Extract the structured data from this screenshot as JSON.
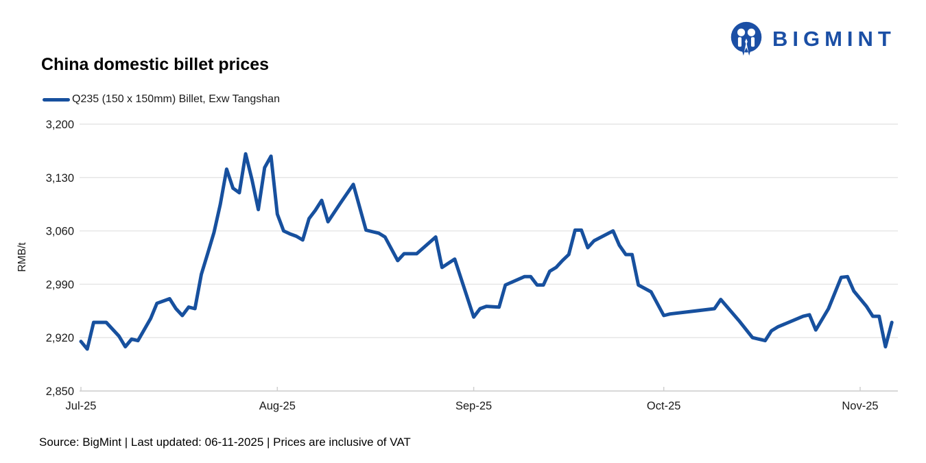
{
  "header": {
    "title": "China domestic billet prices"
  },
  "logo": {
    "text": "BIGMINT",
    "color": "#1b4fa5"
  },
  "legend": {
    "label": "Q235 (150 x 150mm) Billet, Exw Tangshan",
    "line_color": "#17509e"
  },
  "footer": {
    "text": "Source: BigMint | Last updated: 06-11-2025 | Prices are inclusive of VAT"
  },
  "chart_data": {
    "type": "line",
    "title": "China domestic billet prices",
    "series_name": "Q235 (150 x 150mm) Billet, Exw Tangshan",
    "ylabel": "RMB/t",
    "xlabel": "",
    "ylim": [
      2850,
      3200
    ],
    "y_tick_values": [
      3200,
      3130,
      3060,
      2990,
      2920,
      2850
    ],
    "y_tick_labels": [
      "3,200",
      "3,130",
      "3,060",
      "2,990",
      "2,920",
      "2,850"
    ],
    "x_tick_labels": [
      "Jul-25",
      "Aug-25",
      "Sep-25",
      "Oct-25",
      "Nov-25"
    ],
    "x_tick_days": [
      0,
      31,
      62,
      92,
      123
    ],
    "x_unit": "days_since_2025-07-01",
    "x_range_days": [
      0,
      129
    ],
    "grid": "horizontal",
    "legend_position": "top-left",
    "line_color": "#17509e",
    "points": [
      [
        0,
        2915
      ],
      [
        1,
        2905
      ],
      [
        2,
        2940
      ],
      [
        4,
        2940
      ],
      [
        6,
        2922
      ],
      [
        7,
        2908
      ],
      [
        8,
        2918
      ],
      [
        9,
        2916
      ],
      [
        11,
        2945
      ],
      [
        12,
        2965
      ],
      [
        13,
        2968
      ],
      [
        14,
        2971
      ],
      [
        15,
        2958
      ],
      [
        16,
        2949
      ],
      [
        17,
        2960
      ],
      [
        18,
        2958
      ],
      [
        19,
        3003
      ],
      [
        20,
        3030
      ],
      [
        21,
        3058
      ],
      [
        22,
        3095
      ],
      [
        23,
        3141
      ],
      [
        24,
        3116
      ],
      [
        25,
        3110
      ],
      [
        26,
        3161
      ],
      [
        27,
        3127
      ],
      [
        28,
        3088
      ],
      [
        29,
        3143
      ],
      [
        30,
        3158
      ],
      [
        31,
        3082
      ],
      [
        32,
        3060
      ],
      [
        33,
        3056
      ],
      [
        34,
        3053
      ],
      [
        35,
        3048
      ],
      [
        36,
        3076
      ],
      [
        37,
        3087
      ],
      [
        38,
        3100
      ],
      [
        39,
        3072
      ],
      [
        41,
        3097
      ],
      [
        43,
        3121
      ],
      [
        45,
        3061
      ],
      [
        47,
        3057
      ],
      [
        48,
        3052
      ],
      [
        50,
        3021
      ],
      [
        51,
        3030
      ],
      [
        53,
        3030
      ],
      [
        56,
        3052
      ],
      [
        57,
        3012
      ],
      [
        59,
        3023
      ],
      [
        62,
        2947
      ],
      [
        63,
        2958
      ],
      [
        64,
        2961
      ],
      [
        66,
        2960
      ],
      [
        67,
        2989
      ],
      [
        70,
        3000
      ],
      [
        71,
        3000
      ],
      [
        72,
        2989
      ],
      [
        73,
        2989
      ],
      [
        74,
        3007
      ],
      [
        75,
        3012
      ],
      [
        76,
        3021
      ],
      [
        77,
        3029
      ],
      [
        78,
        3061
      ],
      [
        79,
        3061
      ],
      [
        80,
        3038
      ],
      [
        81,
        3047
      ],
      [
        84,
        3060
      ],
      [
        85,
        3041
      ],
      [
        86,
        3029
      ],
      [
        87,
        3029
      ],
      [
        88,
        2989
      ],
      [
        90,
        2980
      ],
      [
        92,
        2949
      ],
      [
        93,
        2951
      ],
      [
        100,
        2958
      ],
      [
        101,
        2970
      ],
      [
        104,
        2941
      ],
      [
        106,
        2920
      ],
      [
        108,
        2916
      ],
      [
        109,
        2929
      ],
      [
        110,
        2934
      ],
      [
        114,
        2948
      ],
      [
        115,
        2950
      ],
      [
        116,
        2930
      ],
      [
        118,
        2958
      ],
      [
        120,
        2999
      ],
      [
        121,
        3000
      ],
      [
        122,
        2981
      ],
      [
        124,
        2961
      ],
      [
        125,
        2948
      ],
      [
        126,
        2948
      ],
      [
        127,
        2908
      ],
      [
        128,
        2940
      ]
    ]
  }
}
